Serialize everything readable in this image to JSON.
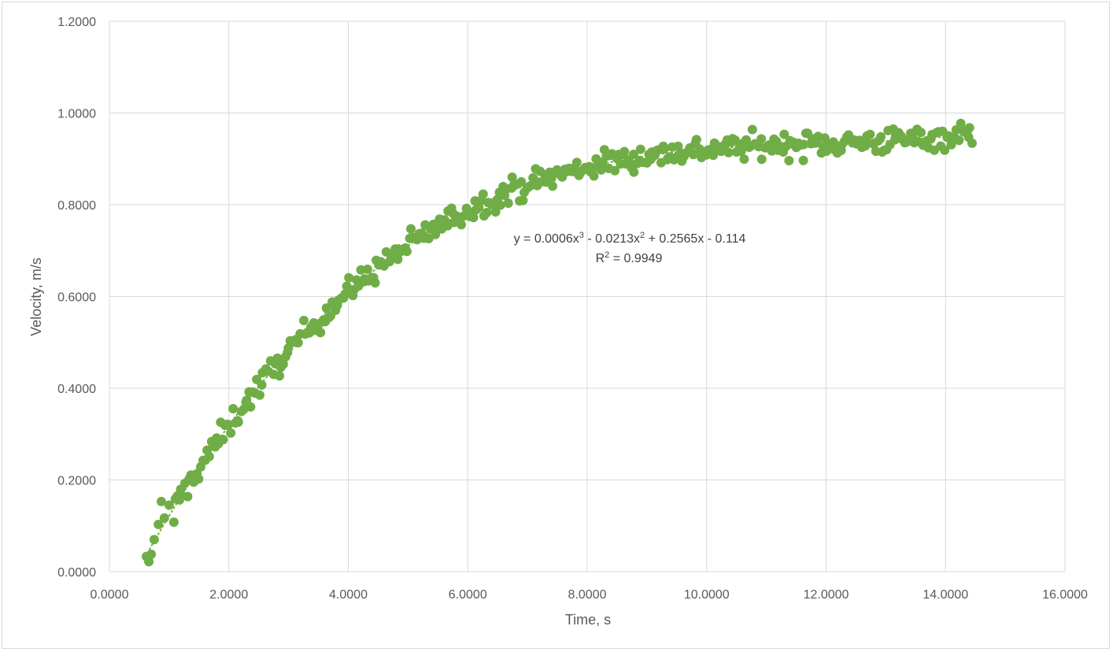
{
  "chart_data": {
    "type": "scatter",
    "title": "",
    "xlabel": "Time, s",
    "ylabel": "Velocity, m/s",
    "xlim": [
      0,
      16
    ],
    "ylim": [
      0,
      1.2
    ],
    "x_ticks": [
      0,
      2,
      4,
      6,
      8,
      10,
      12,
      14,
      16
    ],
    "y_ticks": [
      0,
      0.2,
      0.4,
      0.6,
      0.8,
      1.0,
      1.2
    ],
    "x_tick_labels": [
      "0.0000",
      "2.0000",
      "4.0000",
      "6.0000",
      "8.0000",
      "10.0000",
      "12.0000",
      "14.0000",
      "16.0000"
    ],
    "y_tick_labels": [
      "0.0000",
      "0.2000",
      "0.4000",
      "0.6000",
      "0.8000",
      "1.0000",
      "1.2000"
    ],
    "grid": true,
    "legend": "none",
    "marker_color": "#70ad47",
    "series": [
      {
        "x_range": [
          0.6,
          14.45
        ],
        "n_points": 400,
        "noise": 0.014,
        "x": [
          0.62,
          0.66,
          0.7,
          0.75,
          0.82,
          0.87,
          0.92,
          1.0,
          1.08
        ],
        "y": [
          0.033,
          0.022,
          0.038,
          0.07,
          0.103,
          0.153,
          0.117,
          0.145,
          0.108
        ]
      }
    ],
    "trendline": {
      "type": "polynomial",
      "order": 3,
      "coefficients": [
        0.0006,
        -0.0213,
        0.2565,
        -0.114
      ],
      "equation": "y = 0.0006x³ - 0.0213x² + 0.2565x - 0.114",
      "equation_parts": {
        "a": "y = 0.0006x",
        "sup1": "3",
        "b": " - 0.0213x",
        "sup2": "2",
        "c": " + 0.2565x - 0.114"
      },
      "r_squared_label": "R² = 0.9949",
      "r_squared_parts": {
        "a": "R",
        "sup": "2",
        "b": " = 0.9949"
      }
    }
  }
}
